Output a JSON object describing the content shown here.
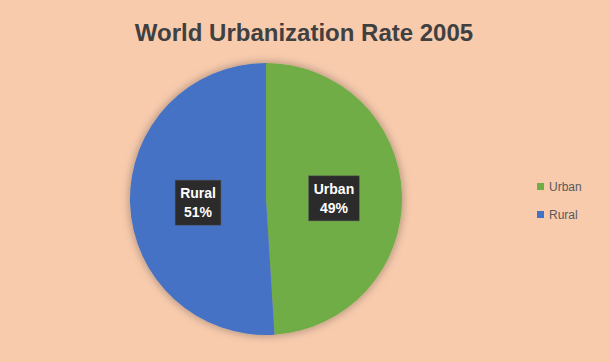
{
  "chart_data": {
    "type": "pie",
    "title": "World Urbanization Rate 2005",
    "categories": [
      "Urban",
      "Rural"
    ],
    "values": [
      49,
      51
    ],
    "value_labels": [
      "49%",
      "51%"
    ],
    "colors": [
      "#70ad47",
      "#4472c4"
    ],
    "data_labels": true,
    "legend": "right"
  }
}
